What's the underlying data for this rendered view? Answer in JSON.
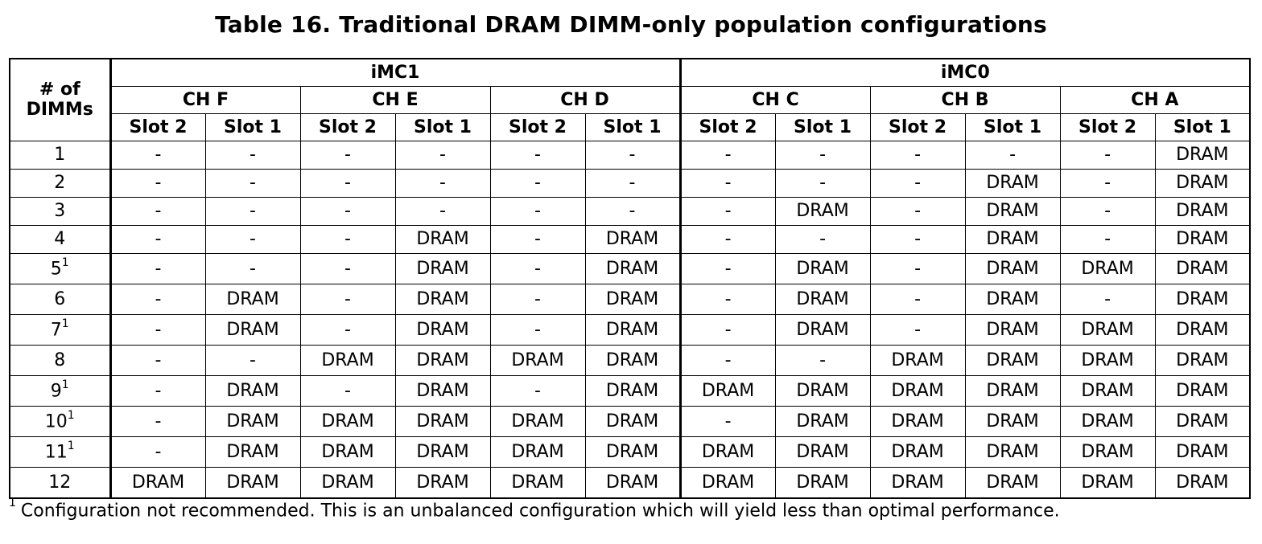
{
  "title": "Table 16. Traditional DRAM DIMM-only population configurations",
  "header": {
    "num_label_line1": "# of",
    "num_label_line2": "DIMMs",
    "imcs": [
      "iMC1",
      "iMC0"
    ],
    "channels": [
      "CH F",
      "CH E",
      "CH D",
      "CH C",
      "CH B",
      "CH A"
    ],
    "slots": [
      "Slot 2",
      "Slot 1",
      "Slot 2",
      "Slot 1",
      "Slot 2",
      "Slot 1",
      "Slot 2",
      "Slot 1",
      "Slot 2",
      "Slot 1",
      "Slot 2",
      "Slot 1"
    ]
  },
  "rows": [
    {
      "n": "1",
      "sup": "",
      "cells": [
        "-",
        "-",
        "-",
        "-",
        "-",
        "-",
        "-",
        "-",
        "-",
        "-",
        "-",
        "DRAM"
      ]
    },
    {
      "n": "2",
      "sup": "",
      "cells": [
        "-",
        "-",
        "-",
        "-",
        "-",
        "-",
        "-",
        "-",
        "-",
        "DRAM",
        "-",
        "DRAM"
      ]
    },
    {
      "n": "3",
      "sup": "",
      "cells": [
        "-",
        "-",
        "-",
        "-",
        "-",
        "-",
        "-",
        "DRAM",
        "-",
        "DRAM",
        "-",
        "DRAM"
      ]
    },
    {
      "n": "4",
      "sup": "",
      "cells": [
        "-",
        "-",
        "-",
        "DRAM",
        "-",
        "DRAM",
        "-",
        "-",
        "-",
        "DRAM",
        "-",
        "DRAM"
      ]
    },
    {
      "n": "5",
      "sup": "1",
      "cells": [
        "-",
        "-",
        "-",
        "DRAM",
        "-",
        "DRAM",
        "-",
        "DRAM",
        "-",
        "DRAM",
        "DRAM",
        "DRAM"
      ]
    },
    {
      "n": "6",
      "sup": "",
      "cells": [
        "-",
        "DRAM",
        "-",
        "DRAM",
        "-",
        "DRAM",
        "-",
        "DRAM",
        "-",
        "DRAM",
        "-",
        "DRAM"
      ]
    },
    {
      "n": "7",
      "sup": "1",
      "cells": [
        "-",
        "DRAM",
        "-",
        "DRAM",
        "-",
        "DRAM",
        "-",
        "DRAM",
        "-",
        "DRAM",
        "DRAM",
        "DRAM"
      ]
    },
    {
      "n": "8",
      "sup": "",
      "cells": [
        "-",
        "-",
        "DRAM",
        "DRAM",
        "DRAM",
        "DRAM",
        "-",
        "-",
        "DRAM",
        "DRAM",
        "DRAM",
        "DRAM"
      ]
    },
    {
      "n": "9",
      "sup": "1",
      "cells": [
        "-",
        "DRAM",
        "-",
        "DRAM",
        "-",
        "DRAM",
        "DRAM",
        "DRAM",
        "DRAM",
        "DRAM",
        "DRAM",
        "DRAM"
      ]
    },
    {
      "n": "10",
      "sup": "1",
      "cells": [
        "-",
        "DRAM",
        "DRAM",
        "DRAM",
        "DRAM",
        "DRAM",
        "-",
        "DRAM",
        "DRAM",
        "DRAM",
        "DRAM",
        "DRAM"
      ]
    },
    {
      "n": "11",
      "sup": "1",
      "cells": [
        "-",
        "DRAM",
        "DRAM",
        "DRAM",
        "DRAM",
        "DRAM",
        "DRAM",
        "DRAM",
        "DRAM",
        "DRAM",
        "DRAM",
        "DRAM"
      ]
    },
    {
      "n": "12",
      "sup": "",
      "cells": [
        "DRAM",
        "DRAM",
        "DRAM",
        "DRAM",
        "DRAM",
        "DRAM",
        "DRAM",
        "DRAM",
        "DRAM",
        "DRAM",
        "DRAM",
        "DRAM"
      ]
    }
  ],
  "footnote": {
    "marker": "1",
    "text": "Configuration not recommended. This is an unbalanced configuration which will yield less than optimal performance."
  }
}
